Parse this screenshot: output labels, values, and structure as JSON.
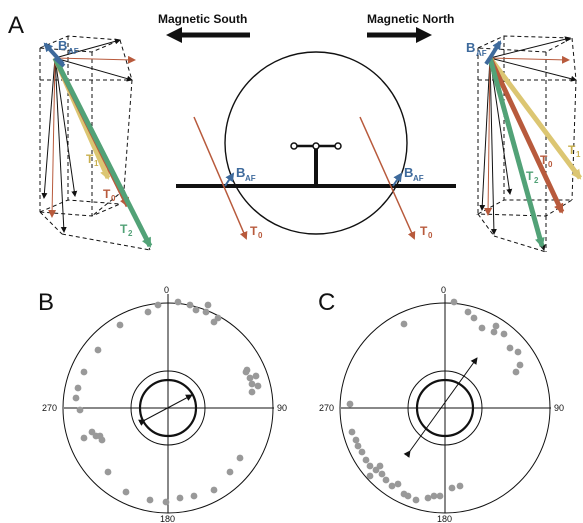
{
  "panels": {
    "a": {
      "letter": "A",
      "south_label": "Magnetic South",
      "north_label": "Magnetic North",
      "b_main": "B",
      "b_sub": "AF",
      "t0_main": "T",
      "t0_sub": "0",
      "t1_main": "T",
      "t1_sub": "1",
      "t2_main": "T",
      "t2_sub": "2"
    },
    "b": {
      "letter": "B",
      "deg_0": "0",
      "deg_90": "90",
      "deg_180": "180",
      "deg_270": "270"
    },
    "c": {
      "letter": "C",
      "deg_0": "0",
      "deg_90": "90",
      "deg_180": "180",
      "deg_270": "270"
    }
  },
  "colors": {
    "b_af": "#3e6a9c",
    "t0": "#b85a3c",
    "t1": "#dcc672",
    "t2": "#52a277",
    "points": "#999999"
  },
  "icons": {
    "south_arrow": "arrow-left-icon",
    "north_arrow": "arrow-right-icon"
  }
}
